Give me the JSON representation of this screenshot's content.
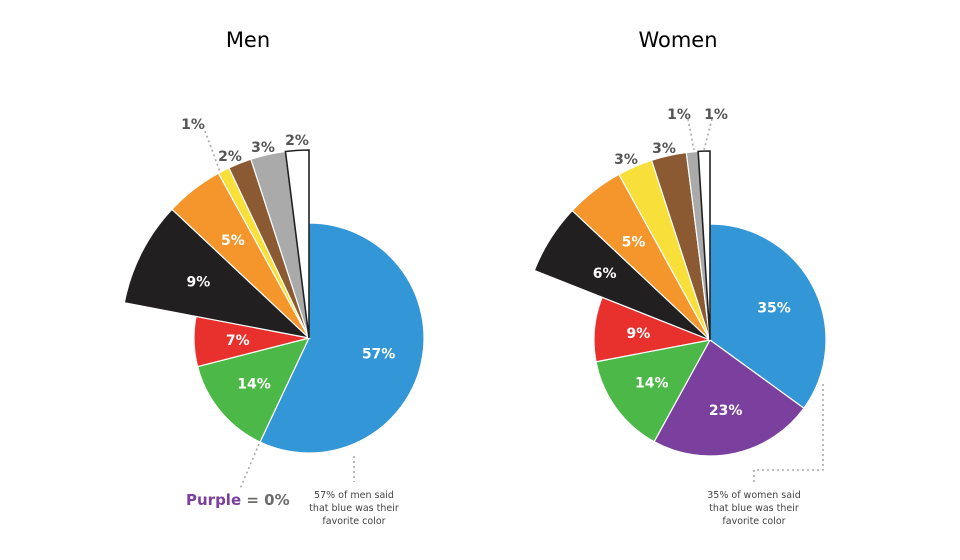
{
  "chart_data": [
    {
      "type": "pie",
      "title": "Men",
      "slices": [
        {
          "label": "57%",
          "value": 57,
          "color": "#3396d6",
          "exploded": false
        },
        {
          "label": "",
          "value": 0,
          "color": "#7b3f9e",
          "exploded": false
        },
        {
          "label": "14%",
          "value": 14,
          "color": "#4cb847",
          "exploded": false
        },
        {
          "label": "7%",
          "value": 7,
          "color": "#e8302c",
          "exploded": false
        },
        {
          "label": "9%",
          "value": 9,
          "color": "#221f20",
          "exploded": true
        },
        {
          "label": "5%",
          "value": 5,
          "color": "#f5962c",
          "exploded": true
        },
        {
          "label": "1%",
          "value": 1,
          "color": "#f9df39",
          "exploded": true
        },
        {
          "label": "2%",
          "value": 2,
          "color": "#8b5a33",
          "exploded": true
        },
        {
          "label": "3%",
          "value": 3,
          "color": "#aaaaaa",
          "exploded": true
        },
        {
          "label": "2%",
          "value": 2,
          "color": "#ffffff",
          "exploded": true
        }
      ],
      "annotations": {
        "purple_word": "Purple",
        "purple_rest": " = 0%",
        "note": [
          "57% of men said",
          "that blue was their",
          "favorite color"
        ]
      }
    },
    {
      "type": "pie",
      "title": "Women",
      "slices": [
        {
          "label": "35%",
          "value": 35,
          "color": "#3396d6",
          "exploded": false
        },
        {
          "label": "23%",
          "value": 23,
          "color": "#7b3f9e",
          "exploded": false
        },
        {
          "label": "14%",
          "value": 14,
          "color": "#4cb847",
          "exploded": false
        },
        {
          "label": "9%",
          "value": 9,
          "color": "#e8302c",
          "exploded": false
        },
        {
          "label": "6%",
          "value": 6,
          "color": "#221f20",
          "exploded": true
        },
        {
          "label": "5%",
          "value": 5,
          "color": "#f5962c",
          "exploded": true
        },
        {
          "label": "3%",
          "value": 3,
          "color": "#f9df39",
          "exploded": true
        },
        {
          "label": "3%",
          "value": 3,
          "color": "#8b5a33",
          "exploded": true
        },
        {
          "label": "1%",
          "value": 1,
          "color": "#aaaaaa",
          "exploded": true
        },
        {
          "label": "1%",
          "value": 1,
          "color": "#ffffff",
          "exploded": true
        }
      ],
      "annotations": {
        "note": [
          "35% of women said",
          "that blue was their",
          "favorite color"
        ]
      }
    }
  ]
}
